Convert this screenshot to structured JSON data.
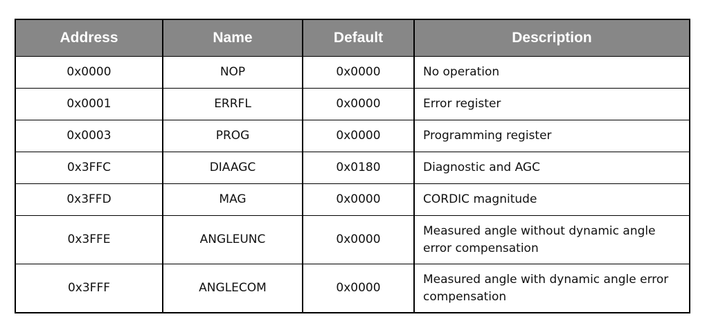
{
  "table": {
    "headers": [
      "Address",
      "Name",
      "Default",
      "Description"
    ],
    "rows": [
      {
        "address": "0x0000",
        "name": "NOP",
        "default": "0x0000",
        "description": "No operation"
      },
      {
        "address": "0x0001",
        "name": "ERRFL",
        "default": "0x0000",
        "description": "Error register"
      },
      {
        "address": "0x0003",
        "name": "PROG",
        "default": "0x0000",
        "description": "Programming register"
      },
      {
        "address": "0x3FFC",
        "name": "DIAAGC",
        "default": "0x0180",
        "description": "Diagnostic and AGC"
      },
      {
        "address": "0x3FFD",
        "name": "MAG",
        "default": "0x0000",
        "description": "CORDIC magnitude"
      },
      {
        "address": "0x3FFE",
        "name": "ANGLEUNC",
        "default": "0x0000",
        "description": "Measured angle without dynamic angle error compensation"
      },
      {
        "address": "0x3FFF",
        "name": "ANGLECOM",
        "default": "0x0000",
        "description": "Measured angle with dynamic angle error compensation"
      }
    ]
  },
  "colors": {
    "header_bg": "#878787",
    "header_text": "#ffffff",
    "border": "#000000"
  }
}
